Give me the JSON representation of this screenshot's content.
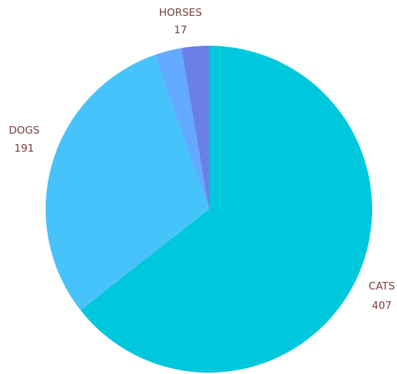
{
  "chart_data": {
    "type": "pie",
    "slices": [
      {
        "label": "CATS",
        "value": 407,
        "display_value": "407",
        "color": "#00c8dc",
        "show_label": true
      },
      {
        "label": "DOGS",
        "value": 191,
        "display_value": "191",
        "color": "#47c3fb",
        "show_label": true
      },
      {
        "label": "",
        "value": 17,
        "display_value": "",
        "color": "#62a9ff",
        "show_label": false
      },
      {
        "label": "HORSES",
        "value": 17,
        "display_value": "17",
        "color": "#6b7fe8",
        "show_label": true
      }
    ],
    "legend": "none",
    "start_angle": "top",
    "direction": "clockwise"
  },
  "colors": {
    "label_text": "#7a3f3f",
    "background": "#ffffff"
  }
}
